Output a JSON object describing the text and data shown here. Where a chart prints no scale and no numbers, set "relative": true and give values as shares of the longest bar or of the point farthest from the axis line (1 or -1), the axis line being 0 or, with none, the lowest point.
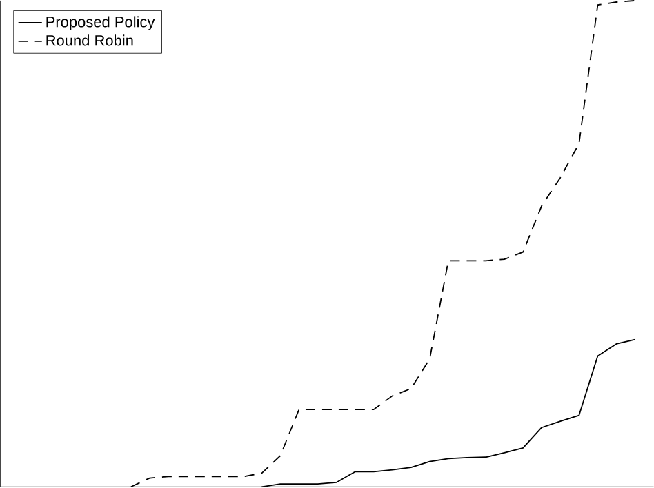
{
  "chart_data": {
    "type": "line",
    "relative": true,
    "legend": "top left",
    "tick_labels": false,
    "marker": "none",
    "categories": [
      null,
      null,
      null,
      null,
      null,
      null,
      null,
      null,
      null,
      null,
      null,
      null,
      null,
      null,
      null,
      null,
      null,
      null,
      null,
      null,
      null,
      null,
      null,
      null,
      null,
      null,
      null,
      null,
      null,
      null,
      null,
      null,
      null,
      null,
      null,
      null
    ],
    "series": [
      {
        "name": "Proposed Policy",
        "color": "#000000",
        "line_style": "solid",
        "values": [
          null,
          null,
          null,
          null,
          null,
          null,
          null,
          null,
          null,
          null,
          null,
          null,
          null,
          null,
          0,
          0.006,
          0.006,
          0.006,
          0.009,
          0.031,
          0.031,
          0.035,
          0.04,
          0.052,
          0.058,
          0.06,
          0.061,
          0.07,
          0.08,
          0.122,
          0.135,
          0.147,
          0.269,
          0.294,
          0.303,
          null
        ]
      },
      {
        "name": "Round Robin",
        "color": "#000000",
        "line_style": "dashed",
        "values": [
          null,
          null,
          null,
          null,
          null,
          null,
          null,
          0,
          0.018,
          0.021,
          0.021,
          0.021,
          0.021,
          0.021,
          0.028,
          0.064,
          0.159,
          0.159,
          0.159,
          0.159,
          0.159,
          0.187,
          0.202,
          0.263,
          0.465,
          0.465,
          0.465,
          0.468,
          0.483,
          0.578,
          0.636,
          0.706,
          0.991,
          0.997,
          1,
          null
        ]
      }
    ]
  }
}
